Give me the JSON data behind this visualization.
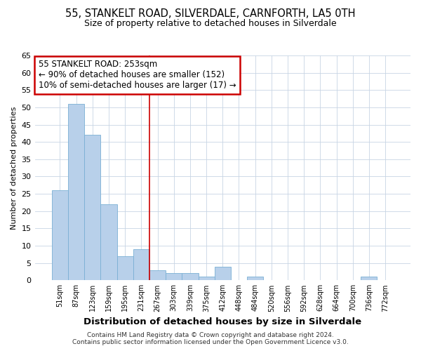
{
  "title1": "55, STANKELT ROAD, SILVERDALE, CARNFORTH, LA5 0TH",
  "title2": "Size of property relative to detached houses in Silverdale",
  "xlabel": "Distribution of detached houses by size in Silverdale",
  "ylabel": "Number of detached properties",
  "categories": [
    "51sqm",
    "87sqm",
    "123sqm",
    "159sqm",
    "195sqm",
    "231sqm",
    "267sqm",
    "303sqm",
    "339sqm",
    "375sqm",
    "412sqm",
    "448sqm",
    "484sqm",
    "520sqm",
    "556sqm",
    "592sqm",
    "628sqm",
    "664sqm",
    "700sqm",
    "736sqm",
    "772sqm"
  ],
  "values": [
    26,
    51,
    42,
    22,
    7,
    9,
    3,
    2,
    2,
    1,
    4,
    0,
    1,
    0,
    0,
    0,
    0,
    0,
    0,
    1,
    0
  ],
  "bar_color": "#b8d0ea",
  "bar_edge_color": "#7aafd4",
  "vline_x_index": 6.0,
  "vline_color": "#cc0000",
  "annotation_text": "55 STANKELT ROAD: 253sqm\n← 90% of detached houses are smaller (152)\n10% of semi-detached houses are larger (17) →",
  "annotation_box_color": "#cc0000",
  "ylim": [
    0,
    65
  ],
  "yticks": [
    0,
    5,
    10,
    15,
    20,
    25,
    30,
    35,
    40,
    45,
    50,
    55,
    60,
    65
  ],
  "footer_text": "Contains HM Land Registry data © Crown copyright and database right 2024.\nContains public sector information licensed under the Open Government Licence v3.0.",
  "bg_color": "#ffffff",
  "grid_color": "#c8d4e4",
  "title1_fontsize": 10.5,
  "title2_fontsize": 9,
  "ylabel_fontsize": 8,
  "xlabel_fontsize": 9.5
}
